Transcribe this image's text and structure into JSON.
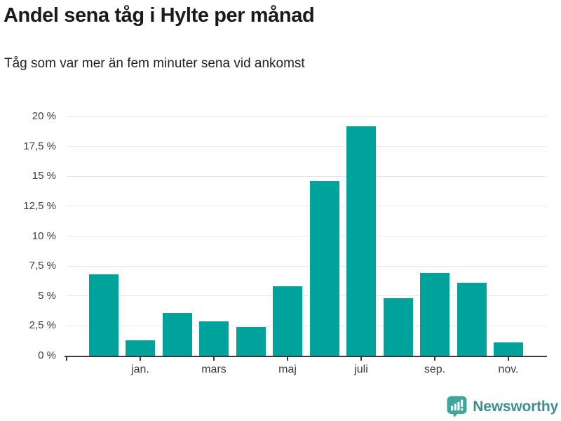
{
  "header": {
    "title": "Andel sena tåg i Hylte per månad",
    "subtitle": "Tåg som var mer än fem minuter sena vid ankomst"
  },
  "chart_data": {
    "type": "bar",
    "title": "Andel sena tåg i Hylte per månad",
    "subtitle": "Tåg som var mer än fem minuter sena vid ankomst",
    "values": [
      6.8,
      1.3,
      3.6,
      2.9,
      2.4,
      5.8,
      14.6,
      19.2,
      4.8,
      6.9,
      6.1,
      1.1
    ],
    "x_tick_labels": [
      "jan.",
      "mars",
      "maj",
      "juli",
      "sep.",
      "nov."
    ],
    "x_tick_bar_indexes": [
      1,
      3,
      5,
      7,
      9,
      11
    ],
    "y_ticks": [
      0,
      2.5,
      5,
      7.5,
      10,
      12.5,
      15,
      17.5,
      20
    ],
    "y_tick_labels": [
      "0 %",
      "2,5 %",
      "5 %",
      "7,5 %",
      "10 %",
      "12,5 %",
      "15 %",
      "17,5 %",
      "20 %"
    ],
    "ylim": [
      0,
      20
    ],
    "grid": true,
    "legend_position": "none",
    "bar_color": "#00a39b"
  },
  "footer": {
    "brand": "Newsworthy"
  },
  "colors": {
    "accent": "#00a39b",
    "title_text": "#1a1a1a",
    "axis_text": "#3d3d3d",
    "axis_line": "#383838",
    "gridline": "#e7e7e7",
    "logo_icon": "#3fa59e",
    "logo_text": "#3e8e8c"
  }
}
